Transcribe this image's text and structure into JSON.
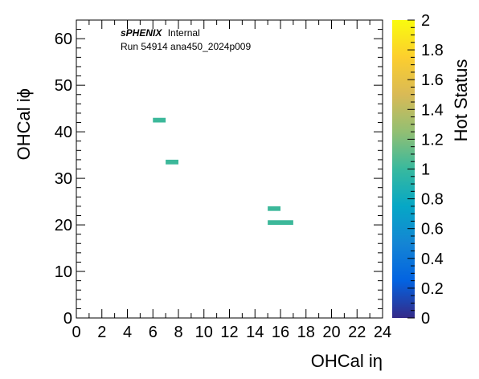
{
  "chart_data": {
    "type": "heatmap",
    "title": "",
    "xlabel": "OHCal iη",
    "ylabel": "OHCal iϕ",
    "zlabel": "Hot Status",
    "xlim": [
      0,
      24
    ],
    "ylim": [
      0,
      64
    ],
    "zlim": [
      0,
      2
    ],
    "x_ticks": [
      "0",
      "2",
      "4",
      "6",
      "8",
      "10",
      "12",
      "14",
      "16",
      "18",
      "20",
      "22",
      "24"
    ],
    "y_ticks": [
      "0",
      "10",
      "20",
      "30",
      "40",
      "50",
      "60"
    ],
    "z_ticks": [
      "0",
      "0.2",
      "0.4",
      "0.6",
      "0.8",
      "1",
      "1.2",
      "1.4",
      "1.6",
      "1.8",
      "2"
    ],
    "cells": [
      {
        "ieta": 6,
        "iphi": 42,
        "value": 1
      },
      {
        "ieta": 7,
        "iphi": 33,
        "value": 1
      },
      {
        "ieta": 15,
        "iphi": 23,
        "value": 1
      },
      {
        "ieta": 15,
        "iphi": 20,
        "value": 1
      },
      {
        "ieta": 16,
        "iphi": 20,
        "value": 1
      }
    ],
    "palette": "kBird",
    "annotations": {
      "experiment": "sPHENIX",
      "status": "Internal",
      "run_info": "Run 54914 ana450_2024p009"
    },
    "colors": {
      "cell": "#3cb89a"
    }
  }
}
